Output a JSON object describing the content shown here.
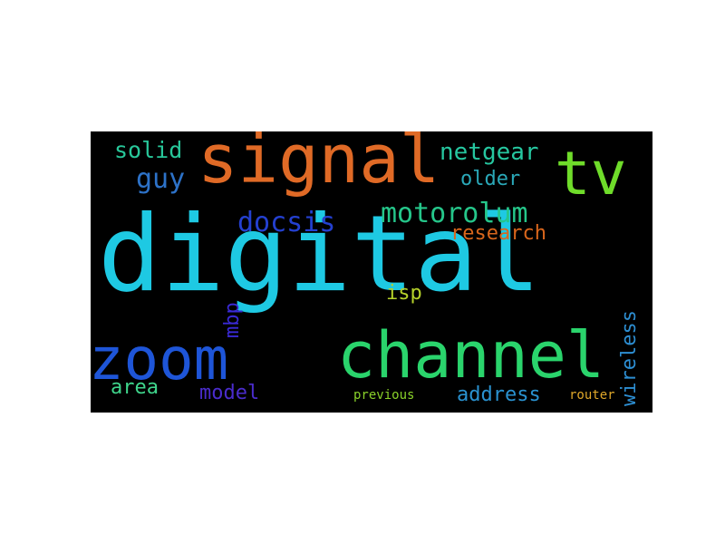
{
  "words": [
    {
      "text": "digital",
      "color": "#1ec9e3"
    },
    {
      "text": "signal",
      "color": "#e06a26"
    },
    {
      "text": "channel",
      "color": "#2ad46c"
    },
    {
      "text": "zoom",
      "color": "#1e55d8"
    },
    {
      "text": "tv",
      "color": "#6fdc2a"
    },
    {
      "text": "motorolum",
      "color": "#25c68a"
    },
    {
      "text": "docsis",
      "color": "#2440d0"
    },
    {
      "text": "guy",
      "color": "#2d72c8"
    },
    {
      "text": "solid",
      "color": "#28c79a"
    },
    {
      "text": "netgear",
      "color": "#26c7a0"
    },
    {
      "text": "older",
      "color": "#2aa8b8"
    },
    {
      "text": "research",
      "color": "#d9661c"
    },
    {
      "text": "wireless",
      "color": "#2d8ed2"
    },
    {
      "text": "mbp",
      "color": "#3a2ad6"
    },
    {
      "text": "isp",
      "color": "#b6d22a"
    },
    {
      "text": "area",
      "color": "#3fd68c"
    },
    {
      "text": "model",
      "color": "#4a2ccc"
    },
    {
      "text": "address",
      "color": "#2a92d0"
    },
    {
      "text": "previous",
      "color": "#8ad22a"
    },
    {
      "text": "router",
      "color": "#e0a82a"
    }
  ]
}
